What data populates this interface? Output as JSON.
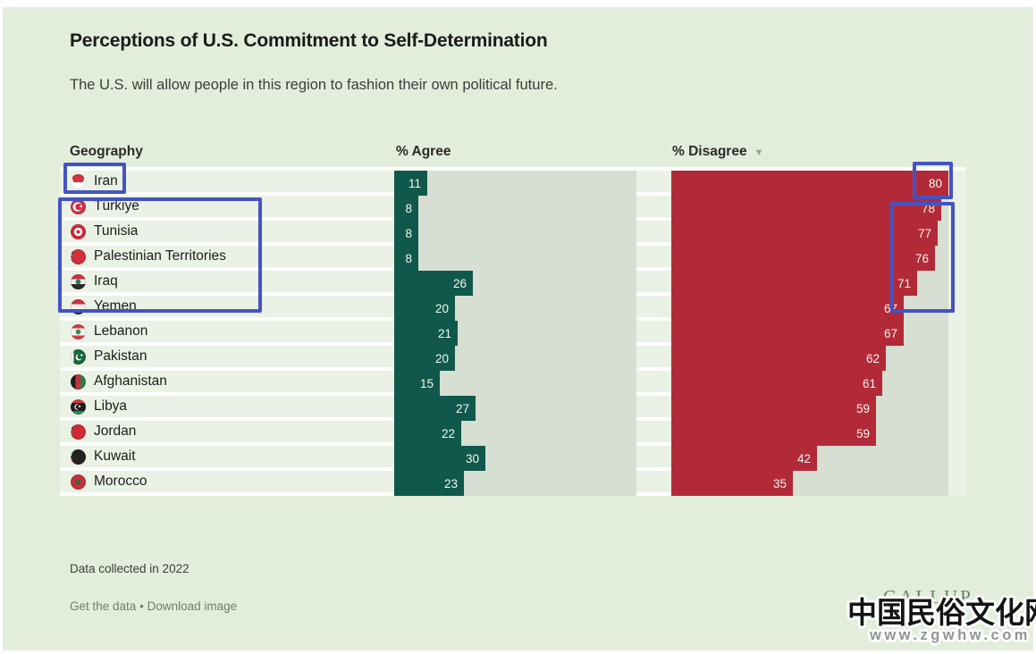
{
  "title": "Perceptions of U.S. Commitment to Self-Determination",
  "subtitle": "The U.S. will allow people in this region to fashion their own political future.",
  "columns": {
    "geography": "Geography",
    "agree": "% Agree",
    "disagree": "% Disagree",
    "sort_indicator": "▼"
  },
  "chart_data": {
    "type": "bar",
    "orientation": "horizontal",
    "axis_max": 80,
    "grid": false,
    "sorted_by": "% Disagree descending",
    "categories": [
      "Iran",
      "Türkiye",
      "Tunisia",
      "Palestinian Territories",
      "Iraq",
      "Yemen",
      "Lebanon",
      "Pakistan",
      "Afghanistan",
      "Libya",
      "Jordan",
      "Kuwait",
      "Morocco"
    ],
    "series": [
      {
        "name": "% Agree",
        "color": "#10584c",
        "values": [
          11,
          8,
          8,
          8,
          26,
          20,
          21,
          20,
          15,
          27,
          22,
          30,
          23
        ]
      },
      {
        "name": "% Disagree",
        "color": "#b22a38",
        "values": [
          80,
          78,
          77,
          76,
          71,
          67,
          67,
          62,
          61,
          59,
          59,
          42,
          35
        ]
      }
    ],
    "title": "Perceptions of U.S. Commitment to Self-Determination",
    "xlabel": "",
    "ylabel": "Geography"
  },
  "rows": [
    {
      "name": "Iran",
      "flag": "iran-flag",
      "agree": 11,
      "disagree": 80
    },
    {
      "name": "Türkiye",
      "flag": "turkiye-flag",
      "agree": 8,
      "disagree": 78
    },
    {
      "name": "Tunisia",
      "flag": "tunisia-flag",
      "agree": 8,
      "disagree": 77
    },
    {
      "name": "Palestinian Territories",
      "flag": "palestine-flag",
      "agree": 8,
      "disagree": 76
    },
    {
      "name": "Iraq",
      "flag": "iraq-flag",
      "agree": 26,
      "disagree": 71
    },
    {
      "name": "Yemen",
      "flag": "yemen-flag",
      "agree": 20,
      "disagree": 67
    },
    {
      "name": "Lebanon",
      "flag": "lebanon-flag",
      "agree": 21,
      "disagree": 67
    },
    {
      "name": "Pakistan",
      "flag": "pakistan-flag",
      "agree": 20,
      "disagree": 62
    },
    {
      "name": "Afghanistan",
      "flag": "afghanistan-flag",
      "agree": 15,
      "disagree": 61
    },
    {
      "name": "Libya",
      "flag": "libya-flag",
      "agree": 27,
      "disagree": 59
    },
    {
      "name": "Jordan",
      "flag": "jordan-flag",
      "agree": 22,
      "disagree": 59
    },
    {
      "name": "Kuwait",
      "flag": "kuwait-flag",
      "agree": 30,
      "disagree": 42
    },
    {
      "name": "Morocco",
      "flag": "morocco-flag",
      "agree": 23,
      "disagree": 35
    }
  ],
  "annotations": {
    "highlight_color": "#4353c4",
    "boxes": [
      {
        "target": "Iran geography label"
      },
      {
        "target": "Türkiye, Tunisia, Palestinian Territories, Iraq geography labels"
      },
      {
        "target": "Iran disagree value 80"
      },
      {
        "target": "Disagree values 78, 77, 76, 71"
      }
    ]
  },
  "footer": {
    "note": "Data collected in 2022",
    "link_get_data": "Get the data",
    "separator": "•",
    "link_download": "Download image",
    "brand": "GALLUP"
  },
  "watermark": {
    "line1": "中国民俗文化网",
    "line2": "www.zgwhw.com"
  }
}
